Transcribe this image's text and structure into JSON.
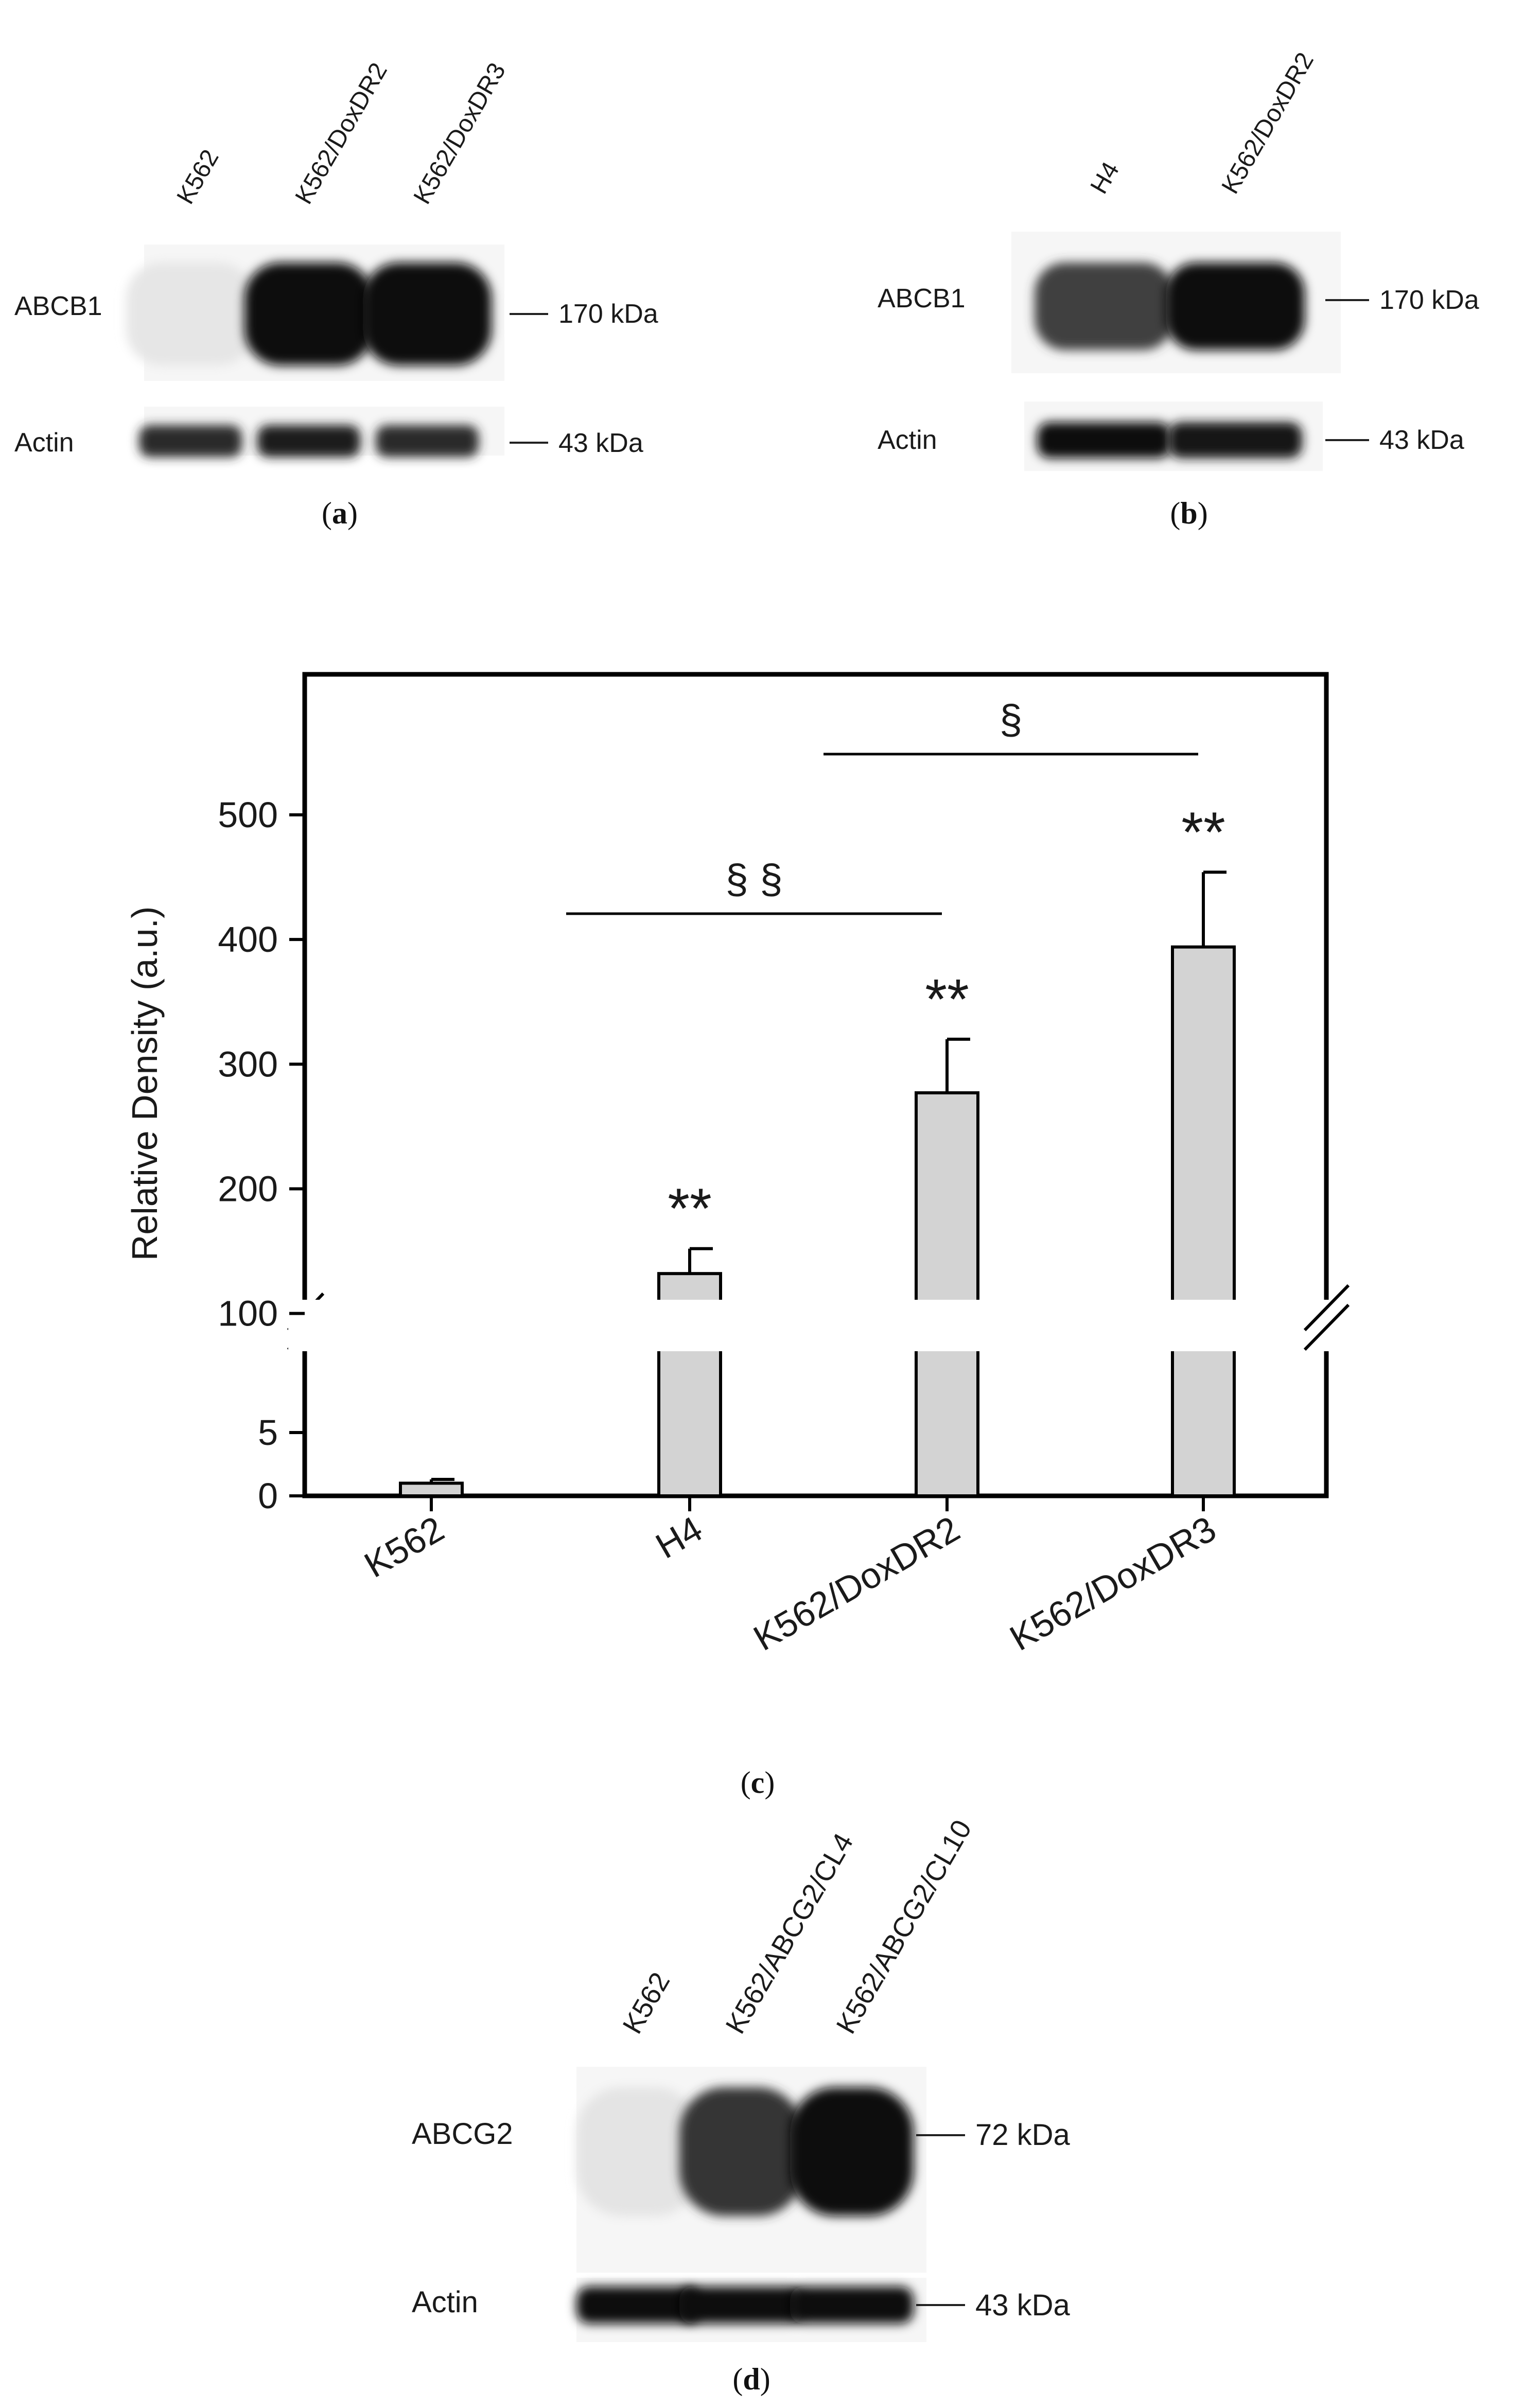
{
  "panel_a": {
    "lanes": [
      "K562",
      "K562/DoxDR2",
      "K562/DoxDR3"
    ],
    "rows": [
      {
        "name": "ABCB1",
        "marker": "170 kDa",
        "intensities": [
          0.02,
          1.0,
          1.0
        ]
      },
      {
        "name": "Actin",
        "marker": "43 kDa",
        "intensities": [
          0.85,
          0.9,
          0.85
        ]
      }
    ],
    "caption_letter": "a"
  },
  "panel_b": {
    "lanes": [
      "H4",
      "K562/DoxDR2"
    ],
    "rows": [
      {
        "name": "ABCB1",
        "marker": "170 kDa",
        "intensities": [
          0.75,
          1.0
        ]
      },
      {
        "name": "Actin",
        "marker": "43 kDa",
        "intensities": [
          1.0,
          0.95
        ]
      }
    ],
    "caption_letter": "b"
  },
  "chart_data": {
    "type": "bar",
    "categories": [
      "K562",
      "H4",
      "K562/DoxDR2",
      "K562/DoxDR3"
    ],
    "values": [
      1,
      132,
      277,
      394
    ],
    "errors": [
      0.3,
      20,
      43,
      60
    ],
    "ylabel": "Relative Density (a.u.)",
    "y_axis_break": {
      "lower_range": [
        0,
        10
      ],
      "upper_range": [
        85,
        590
      ]
    },
    "lower_ticks": [
      0,
      5
    ],
    "upper_ticks": [
      100,
      200,
      300,
      400,
      500
    ],
    "significance": [
      "",
      "**",
      "**",
      "**"
    ],
    "brackets": [
      {
        "from": "H4",
        "to": "K562/DoxDR2",
        "label": "§ §"
      },
      {
        "from": "K562/DoxDR2",
        "to": "K562/DoxDR3",
        "label": "§"
      }
    ],
    "bar_color": "#d3d3d3",
    "caption_letter": "c"
  },
  "panel_d": {
    "lanes": [
      "K562",
      "K562/ABCG2/CL4",
      "K562/ABCG2/CL10"
    ],
    "rows": [
      {
        "name": "ABCG2",
        "marker": "72 kDa",
        "intensities": [
          0.03,
          0.8,
          1.0
        ]
      },
      {
        "name": "Actin",
        "marker": "43 kDa",
        "intensities": [
          1.0,
          1.0,
          1.0
        ]
      }
    ],
    "caption_letter": "d"
  }
}
